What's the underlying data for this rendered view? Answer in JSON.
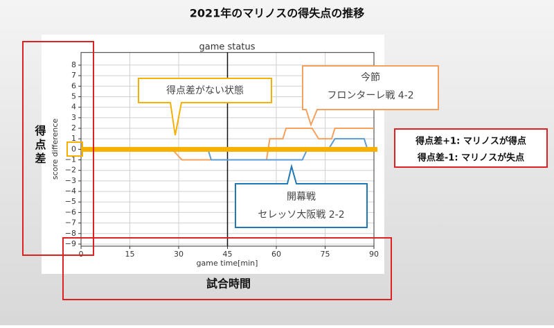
{
  "title": "2021年のマリノスの得失点の推移",
  "chart_data": {
    "type": "line",
    "title": "game status",
    "x_label": "game time[min]",
    "y_label": "score difference",
    "xlim": [
      0,
      90
    ],
    "xticks": [
      0,
      15,
      30,
      45,
      60,
      75,
      90
    ],
    "ylim": [
      -9.2,
      9.2
    ],
    "yticks": [
      {
        "value": -9,
        "label": "−9"
      },
      {
        "value": -8,
        "label": "−8"
      },
      {
        "value": -7,
        "label": "−7"
      },
      {
        "value": -6,
        "label": "−6"
      },
      {
        "value": -5,
        "label": "−5"
      },
      {
        "value": -4,
        "label": "−4"
      },
      {
        "value": -3,
        "label": "−3"
      },
      {
        "value": -2,
        "label": "−2"
      },
      {
        "value": -1,
        "label": "−1"
      },
      0,
      1,
      2,
      3,
      4,
      5,
      6,
      7,
      8
    ],
    "grid": true,
    "vline": 45,
    "series": [
      {
        "color": "#f5a05c",
        "x": [
          0,
          28,
          31,
          57,
          58,
          62,
          63,
          71,
          73,
          77,
          78,
          90
        ],
        "values": [
          0,
          0,
          -1,
          -1,
          1,
          1,
          2,
          2,
          1,
          1,
          2,
          2
        ]
      },
      {
        "color": "#5b9bd5",
        "x": [
          0,
          39,
          40,
          68,
          69.5,
          76,
          78,
          87,
          88,
          90
        ],
        "values": [
          0,
          0,
          -1,
          -1,
          0,
          0,
          1,
          1,
          0,
          0
        ]
      }
    ]
  },
  "callouts": [
    {
      "lines": [
        "得点差がない状態"
      ]
    },
    {
      "lines": [
        "今節",
        "フロンターレ戦 4-2"
      ]
    },
    {
      "lines": [
        "開幕戦",
        "セレッソ大阪戦 2-2"
      ]
    }
  ],
  "y_axis_note": "得点差",
  "x_axis_note": "試合時間",
  "legend_notes": [
    "得点差+1: マリノスが得点",
    "得点差-1: マリノスが失点"
  ]
}
